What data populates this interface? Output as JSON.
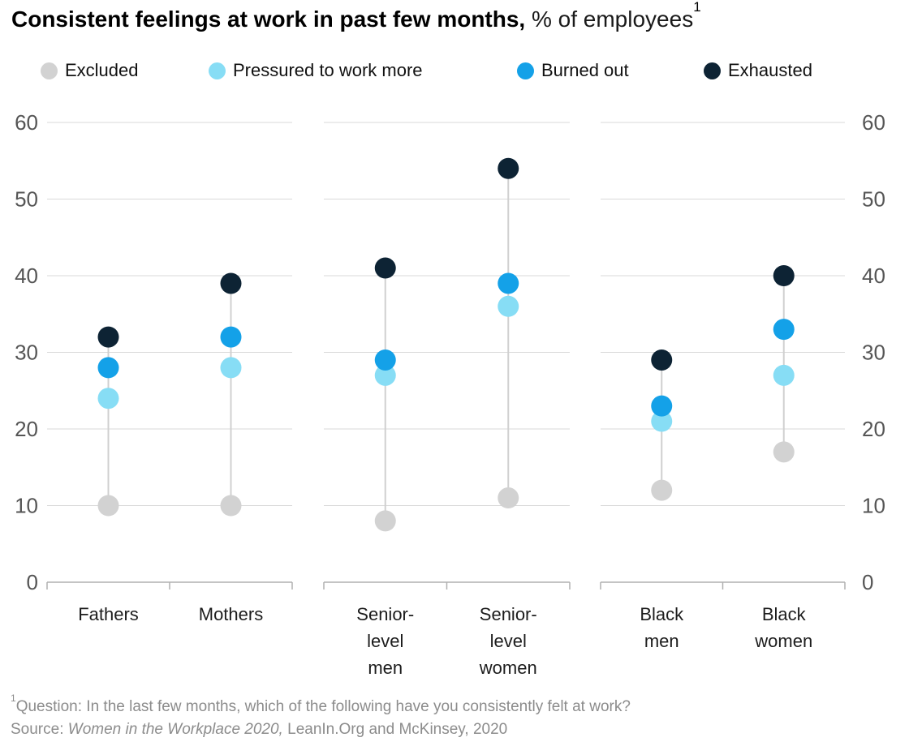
{
  "title": {
    "bold": "Consistent feelings at work in past few months,",
    "regular": " % of employees",
    "superscript": "1"
  },
  "chart_data": {
    "type": "scatter",
    "title": "Consistent feelings at work in past few months, % of employees",
    "ylabel": "% of employees",
    "ylim": [
      0,
      60
    ],
    "yticks": [
      0,
      10,
      20,
      30,
      40,
      50,
      60
    ],
    "grid": "horizontal",
    "legend_position": "top",
    "series": [
      {
        "name": "Excluded",
        "color": "#d2d2d2"
      },
      {
        "name": "Pressured to work more",
        "color": "#87ddf5"
      },
      {
        "name": "Burned out",
        "color": "#14a1e8"
      },
      {
        "name": "Exhausted",
        "color": "#0d2334"
      }
    ],
    "panels": [
      {
        "groups": [
          {
            "label": "Fathers",
            "label_lines": [
              "Fathers"
            ],
            "values": [
              10,
              24,
              28,
              32
            ]
          },
          {
            "label": "Mothers",
            "label_lines": [
              "Mothers"
            ],
            "values": [
              10,
              28,
              32,
              39
            ]
          }
        ]
      },
      {
        "groups": [
          {
            "label": "Senior-level men",
            "label_lines": [
              "Senior-",
              "level",
              "men"
            ],
            "values": [
              8,
              27,
              29,
              41
            ]
          },
          {
            "label": "Senior-level women",
            "label_lines": [
              "Senior-",
              "level",
              "women"
            ],
            "values": [
              11,
              36,
              39,
              54
            ]
          }
        ]
      },
      {
        "groups": [
          {
            "label": "Black men",
            "label_lines": [
              "Black",
              "men"
            ],
            "values": [
              12,
              21,
              23,
              29
            ]
          },
          {
            "label": "Black women",
            "label_lines": [
              "Black",
              "women"
            ],
            "values": [
              17,
              27,
              33,
              40
            ]
          }
        ]
      }
    ]
  },
  "footnote": {
    "marker": "1",
    "question": "Question: In the last few months, which of the following have you consistently felt at work?",
    "source_prefix": "Source: ",
    "source_italic": "Women in the Workplace 2020,",
    "source_rest": " LeanIn.Org and McKinsey, 2020"
  }
}
